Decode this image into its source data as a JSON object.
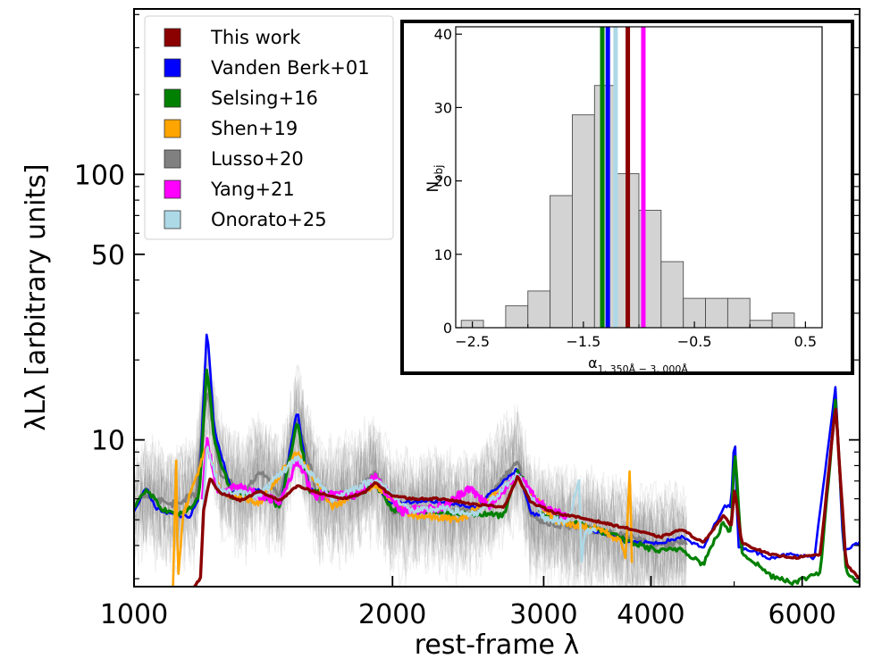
{
  "chart_data": [
    {
      "type": "line",
      "panel": "main",
      "xscale": "log",
      "yscale": "log",
      "xlabel": "rest-frame λ",
      "ylabel": "λLλ [arbitrary units]",
      "xlim": [
        1000,
        7000
      ],
      "ylim": [
        2.8,
        420
      ],
      "xticks": [
        1000,
        2000,
        3000,
        4000,
        6000
      ],
      "xtick_labels": [
        "1000",
        "2000",
        "3000",
        "4000",
        "6000"
      ],
      "yticks": [
        10,
        50,
        100
      ],
      "ytick_labels": [
        "10",
        "50",
        "100"
      ],
      "legend": {
        "placement": "top-left",
        "entries": [
          {
            "label": "This work",
            "color": "#8b0000"
          },
          {
            "label": "Vanden Berk+01",
            "color": "#0000ff"
          },
          {
            "label": "Selsing+16",
            "color": "#008000"
          },
          {
            "label": "Shen+19",
            "color": "#ffa500"
          },
          {
            "label": "Lusso+20",
            "color": "#808080"
          },
          {
            "label": "Yang+21",
            "color": "#ff00ff"
          },
          {
            "label": "Onorato+25",
            "color": "#add8e6"
          }
        ]
      },
      "series": [
        {
          "name": "Lusso+20",
          "color": "#808080",
          "wl_range": [
            1000,
            4400
          ],
          "points": [
            [
              1000,
              5.5
            ],
            [
              1030,
              6.3
            ],
            [
              1100,
              5.7
            ],
            [
              1180,
              6.2
            ],
            [
              1216,
              16
            ],
            [
              1260,
              7.5
            ],
            [
              1340,
              6.2
            ],
            [
              1400,
              7.6
            ],
            [
              1480,
              6.2
            ],
            [
              1549,
              12
            ],
            [
              1640,
              6.0
            ],
            [
              1800,
              6.3
            ],
            [
              1909,
              7.6
            ],
            [
              2000,
              5.4
            ],
            [
              2200,
              5.5
            ],
            [
              2500,
              5.4
            ],
            [
              2798,
              8.3
            ],
            [
              2900,
              5.1
            ],
            [
              3100,
              4.8
            ],
            [
              3400,
              4.6
            ],
            [
              3800,
              4.3
            ],
            [
              4102,
              4.0
            ],
            [
              4340,
              4.1
            ],
            [
              4400,
              4.1
            ]
          ]
        },
        {
          "name": "Vanden Berk+01",
          "color": "#0000ff",
          "wl_range": [
            1000,
            7000
          ],
          "points": [
            [
              1000,
              5.4
            ],
            [
              1033,
              6.6
            ],
            [
              1060,
              5.5
            ],
            [
              1100,
              5.3
            ],
            [
              1160,
              5.1
            ],
            [
              1190,
              6.0
            ],
            [
              1216,
              27
            ],
            [
              1240,
              11
            ],
            [
              1300,
              6.3
            ],
            [
              1400,
              6.5
            ],
            [
              1480,
              5.6
            ],
            [
              1549,
              13
            ],
            [
              1600,
              6.5
            ],
            [
              1700,
              6.2
            ],
            [
              1800,
              6.1
            ],
            [
              1909,
              6.8
            ],
            [
              1990,
              5.8
            ],
            [
              2200,
              5.9
            ],
            [
              2500,
              5.6
            ],
            [
              2798,
              7.8
            ],
            [
              2900,
              5.3
            ],
            [
              3100,
              5.1
            ],
            [
              3400,
              4.6
            ],
            [
              3800,
              4.1
            ],
            [
              4102,
              4.1
            ],
            [
              4340,
              4.3
            ],
            [
              4600,
              3.9
            ],
            [
              4861,
              5.6
            ],
            [
              4959,
              5.6
            ],
            [
              5007,
              11.5
            ],
            [
              5050,
              4.0
            ],
            [
              5500,
              3.6
            ],
            [
              5800,
              3.7
            ],
            [
              6200,
              3.6
            ],
            [
              6563,
              16
            ],
            [
              6700,
              3.8
            ],
            [
              7000,
              4.1
            ]
          ]
        },
        {
          "name": "Selsing+16",
          "color": "#008000",
          "wl_range": [
            1000,
            7000
          ],
          "points": [
            [
              1000,
              5.5
            ],
            [
              1035,
              6.6
            ],
            [
              1080,
              5.4
            ],
            [
              1150,
              5.3
            ],
            [
              1190,
              6.0
            ],
            [
              1216,
              19
            ],
            [
              1240,
              10
            ],
            [
              1300,
              6.1
            ],
            [
              1400,
              6.3
            ],
            [
              1480,
              5.6
            ],
            [
              1549,
              11.8
            ],
            [
              1600,
              6.4
            ],
            [
              1800,
              6.0
            ],
            [
              1909,
              6.9
            ],
            [
              2000,
              5.5
            ],
            [
              2300,
              5.3
            ],
            [
              2700,
              5.2
            ],
            [
              2798,
              7.6
            ],
            [
              3000,
              5.2
            ],
            [
              3400,
              4.7
            ],
            [
              3800,
              4.1
            ],
            [
              4102,
              3.8
            ],
            [
              4340,
              3.9
            ],
            [
              4600,
              3.4
            ],
            [
              4861,
              4.9
            ],
            [
              4959,
              4.4
            ],
            [
              5007,
              9.5
            ],
            [
              5100,
              3.8
            ],
            [
              5500,
              3.1
            ],
            [
              5900,
              2.9
            ],
            [
              6300,
              3.2
            ],
            [
              6563,
              14
            ],
            [
              6750,
              3.2
            ],
            [
              7000,
              2.9
            ]
          ]
        },
        {
          "name": "Shen+19",
          "color": "#ffa500",
          "wl_range": [
            1110,
            3800
          ],
          "points": [
            [
              1110,
              2.8
            ],
            [
              1120,
              8.3
            ],
            [
              1125,
              3.0
            ],
            [
              1140,
              5.2
            ],
            [
              1216,
              9.5
            ],
            [
              1260,
              6.4
            ],
            [
              1400,
              5.8
            ],
            [
              1549,
              9.0
            ],
            [
              1700,
              5.6
            ],
            [
              1909,
              6.8
            ],
            [
              2100,
              5.2
            ],
            [
              2400,
              5.0
            ],
            [
              2798,
              7.2
            ],
            [
              3100,
              4.9
            ],
            [
              3500,
              4.6
            ],
            [
              3700,
              4.1
            ],
            [
              3740,
              3.6
            ],
            [
              3780,
              8.0
            ],
            [
              3800,
              3.4
            ]
          ]
        },
        {
          "name": "Yang+21",
          "color": "#ff00ff",
          "wl_range": [
            1200,
            3200
          ],
          "points": [
            [
              1200,
              5.8
            ],
            [
              1216,
              10
            ],
            [
              1250,
              6.5
            ],
            [
              1330,
              6.6
            ],
            [
              1400,
              6.2
            ],
            [
              1480,
              5.9
            ],
            [
              1549,
              8.4
            ],
            [
              1620,
              6.2
            ],
            [
              1800,
              6.2
            ],
            [
              1909,
              7.2
            ],
            [
              2050,
              5.4
            ],
            [
              2300,
              5.6
            ],
            [
              2450,
              6.6
            ],
            [
              2600,
              5.6
            ],
            [
              2798,
              7.5
            ],
            [
              2950,
              5.8
            ],
            [
              3200,
              5.1
            ]
          ]
        },
        {
          "name": "Onorato+25",
          "color": "#add8e6",
          "wl_range": [
            1200,
            3450
          ],
          "points": [
            [
              1200,
              4.7
            ],
            [
              1216,
              9.5
            ],
            [
              1260,
              6.4
            ],
            [
              1400,
              6.2
            ],
            [
              1549,
              8.6
            ],
            [
              1700,
              6.0
            ],
            [
              1909,
              7.1
            ],
            [
              2100,
              5.4
            ],
            [
              2300,
              5.5
            ],
            [
              2500,
              5.2
            ],
            [
              2798,
              7.4
            ],
            [
              3000,
              5.1
            ],
            [
              3200,
              4.9
            ],
            [
              3300,
              7.0
            ],
            [
              3320,
              3.4
            ],
            [
              3350,
              4.5
            ],
            [
              3450,
              4.6
            ]
          ]
        },
        {
          "name": "This work",
          "color": "#8b0000",
          "wl_range": [
            1175,
            7000
          ],
          "points": [
            [
              1175,
              2.8
            ],
            [
              1195,
              3.0
            ],
            [
              1205,
              5.4
            ],
            [
              1225,
              7.2
            ],
            [
              1260,
              6.3
            ],
            [
              1300,
              6.1
            ],
            [
              1330,
              5.9
            ],
            [
              1400,
              6.4
            ],
            [
              1480,
              5.9
            ],
            [
              1549,
              6.7
            ],
            [
              1640,
              6.3
            ],
            [
              1750,
              6.0
            ],
            [
              1850,
              6.3
            ],
            [
              1909,
              6.9
            ],
            [
              1990,
              6.2
            ],
            [
              2100,
              6.0
            ],
            [
              2300,
              6.0
            ],
            [
              2500,
              5.7
            ],
            [
              2700,
              5.6
            ],
            [
              2798,
              7.3
            ],
            [
              2900,
              5.8
            ],
            [
              3100,
              5.3
            ],
            [
              3400,
              5.0
            ],
            [
              3800,
              4.6
            ],
            [
              4102,
              4.3
            ],
            [
              4340,
              4.6
            ],
            [
              4600,
              4.1
            ],
            [
              4861,
              5.2
            ],
            [
              4959,
              4.7
            ],
            [
              5007,
              6.6
            ],
            [
              5100,
              4.1
            ],
            [
              5500,
              3.7
            ],
            [
              5900,
              3.6
            ],
            [
              6300,
              3.7
            ],
            [
              6563,
              13.6
            ],
            [
              6750,
              3.4
            ],
            [
              7000,
              3.0
            ]
          ]
        }
      ]
    },
    {
      "type": "histogram",
      "panel": "inset",
      "xlabel": "α",
      "xlabel_sub": "1, 350Å − 3, 000Å",
      "ylabel": "N",
      "ylabel_sub": "obj",
      "xlim": [
        -2.65,
        0.65
      ],
      "ylim": [
        0,
        41
      ],
      "xticks": [
        -2.5,
        -1.5,
        -0.5,
        0.5
      ],
      "xtick_labels": [
        "−2.5",
        "−1.5",
        "−0.5",
        "0.5"
      ],
      "yticks": [
        0,
        10,
        20,
        30,
        40
      ],
      "ytick_labels": [
        "0",
        "10",
        "20",
        "30",
        "40"
      ],
      "bin_edges": [
        -2.6,
        -2.4,
        -2.2,
        -2.0,
        -1.8,
        -1.6,
        -1.4,
        -1.2,
        -1.0,
        -0.8,
        -0.6,
        -0.4,
        -0.2,
        0.0,
        0.2,
        0.4,
        0.6
      ],
      "counts": [
        1,
        0,
        3,
        5,
        18,
        29,
        33,
        21,
        16,
        9,
        4,
        4,
        4,
        1,
        2,
        0
      ],
      "bar_color": "#d3d3d3",
      "vlines": [
        {
          "name": "Selsing+16",
          "x": -1.33,
          "color": "#008000"
        },
        {
          "name": "Onorato+25",
          "x": -1.21,
          "color": "#add8e6"
        },
        {
          "name": "This work",
          "x": -1.1,
          "color": "#8b0000"
        },
        {
          "name": "Vanden Berk+01",
          "x": -1.28,
          "color": "#0000ff"
        },
        {
          "name": "Yang+21",
          "x": -0.96,
          "color": "#ff00ff"
        }
      ]
    }
  ]
}
